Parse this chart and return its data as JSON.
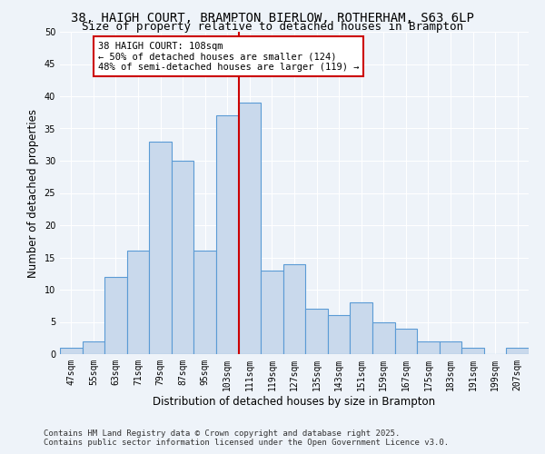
{
  "title_line1": "38, HAIGH COURT, BRAMPTON BIERLOW, ROTHERHAM, S63 6LP",
  "title_line2": "Size of property relative to detached houses in Brampton",
  "xlabel": "Distribution of detached houses by size in Brampton",
  "ylabel": "Number of detached properties",
  "categories": [
    "47sqm",
    "55sqm",
    "63sqm",
    "71sqm",
    "79sqm",
    "87sqm",
    "95sqm",
    "103sqm",
    "111sqm",
    "119sqm",
    "127sqm",
    "135sqm",
    "143sqm",
    "151sqm",
    "159sqm",
    "167sqm",
    "175sqm",
    "183sqm",
    "191sqm",
    "199sqm",
    "207sqm"
  ],
  "values": [
    1,
    2,
    12,
    16,
    33,
    30,
    16,
    37,
    39,
    13,
    14,
    7,
    6,
    8,
    5,
    4,
    2,
    2,
    1,
    0,
    1
  ],
  "bar_color": "#c9d9ec",
  "bar_edge_color": "#5b9bd5",
  "vline_x": 7.5,
  "vline_color": "#cc0000",
  "annotation_text": "38 HAIGH COURT: 108sqm\n← 50% of detached houses are smaller (124)\n48% of semi-detached houses are larger (119) →",
  "annotation_box_color": "#ffffff",
  "annotation_box_edge": "#cc0000",
  "ylim": [
    0,
    50
  ],
  "yticks": [
    0,
    5,
    10,
    15,
    20,
    25,
    30,
    35,
    40,
    45,
    50
  ],
  "footer_line1": "Contains HM Land Registry data © Crown copyright and database right 2025.",
  "footer_line2": "Contains public sector information licensed under the Open Government Licence v3.0.",
  "bg_color": "#eef3f9",
  "title_fontsize": 10,
  "subtitle_fontsize": 9,
  "axis_label_fontsize": 8.5,
  "tick_fontsize": 7,
  "footer_fontsize": 6.5,
  "ann_fontsize": 7.5
}
